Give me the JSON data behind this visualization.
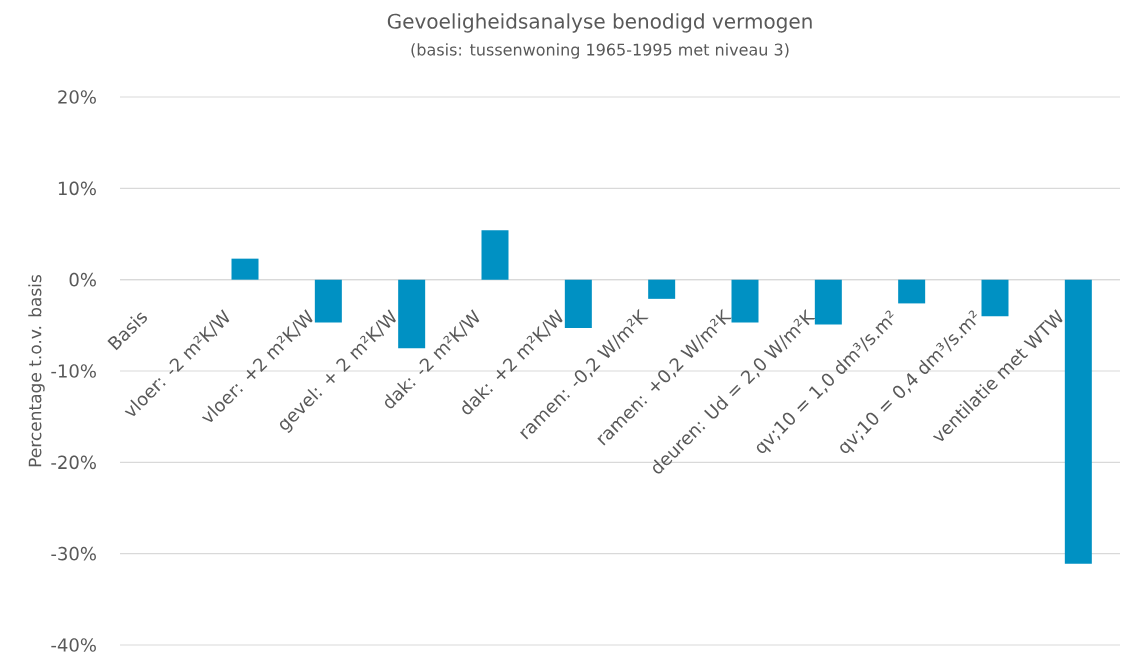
{
  "chart_data": {
    "type": "bar",
    "title": "Gevoeligheidsanalyse benodigd  vermogen",
    "subtitle": "(basis: tussenwoning 1965-1995 met niveau 3)",
    "ylabel": "Percentage t.o.v. basis",
    "categories": [
      "Basis",
      "vloer: -2 m²K/W",
      "vloer: +2 m²K/W",
      "gevel: + 2 m²K/W",
      "dak: -2 m²K/W",
      "dak: +2 m²K/W",
      "ramen: -0,2 W/m²K",
      "ramen: +0,2 W/m²K",
      "deuren: Ud = 2,0 W/m²K",
      "qv;10 = 1,0 dm³/s.m²",
      "qv;10 = 0,4 dm³/s.m²",
      "ventilatie met WTW"
    ],
    "values": [
      0,
      2.3,
      -4.7,
      -7.5,
      5.4,
      -5.3,
      -2.1,
      -4.7,
      -4.9,
      -2.6,
      -4.0,
      -31.1
    ],
    "color": "#0091c3",
    "ylim": [
      -40,
      20
    ],
    "yticks": [
      {
        "value": -40,
        "label": "-40%"
      },
      {
        "value": -30,
        "label": "-30%"
      },
      {
        "value": -20,
        "label": "-20%"
      },
      {
        "value": -10,
        "label": "-10%"
      },
      {
        "value": 0,
        "label": "0%"
      },
      {
        "value": 10,
        "label": "10%"
      },
      {
        "value": 20,
        "label": "20%"
      }
    ],
    "grid": "y"
  }
}
